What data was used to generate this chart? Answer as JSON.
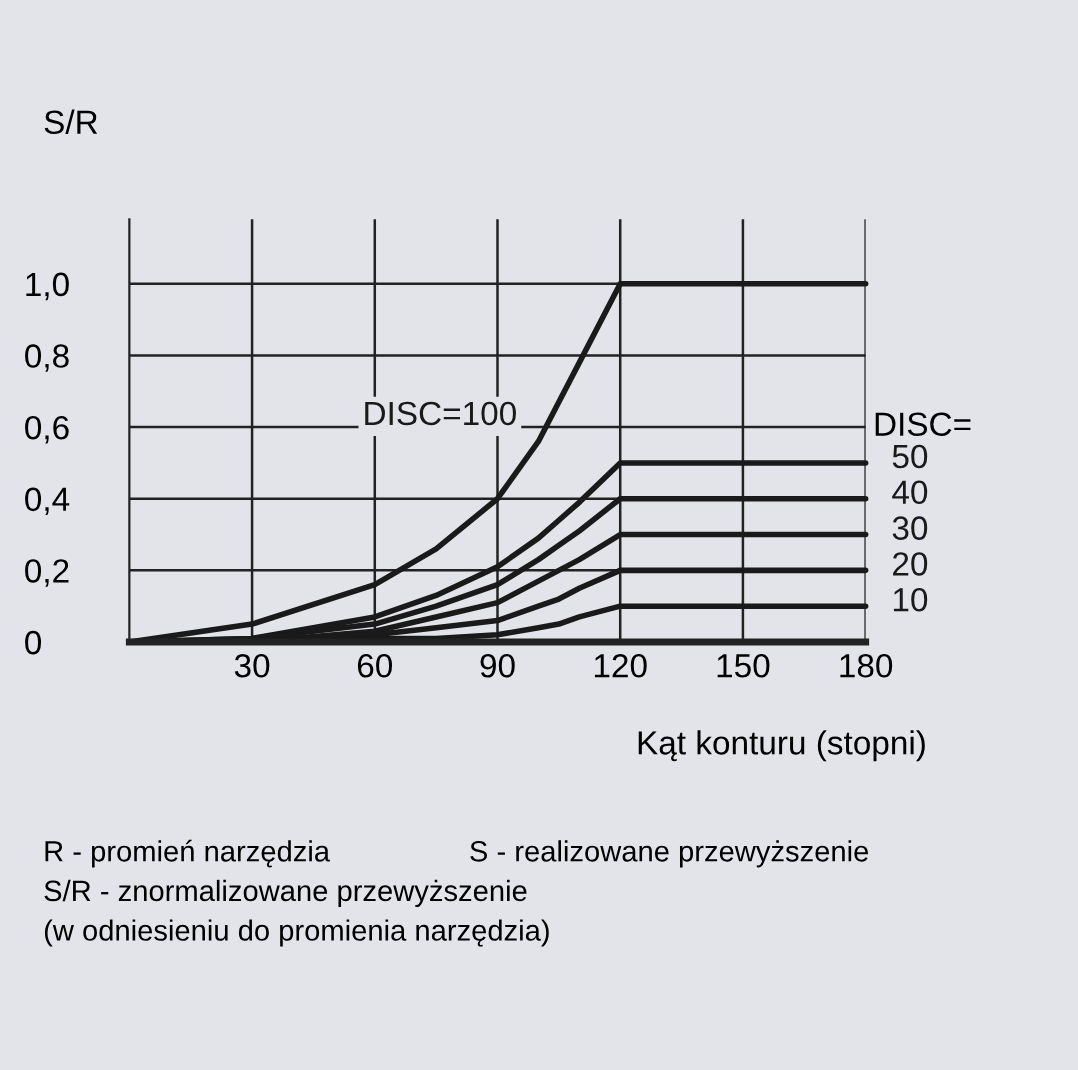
{
  "chart_data": {
    "type": "line",
    "ylabel": "S/R",
    "xlabel": "Kąt konturu (stopni)",
    "legend_title": "DISC=",
    "x": [
      0,
      30,
      60,
      75,
      90,
      100,
      105,
      110,
      120,
      180
    ],
    "series": [
      {
        "name": "DISC=100",
        "color": "#1a1a1a",
        "values": [
          0,
          0.05,
          0.16,
          0.26,
          0.4,
          0.56,
          0.67,
          0.78,
          1.0,
          1.0
        ]
      },
      {
        "name": "50",
        "color": "#1a1a1a",
        "values": [
          0,
          0.01,
          0.07,
          0.13,
          0.21,
          0.29,
          0.34,
          0.39,
          0.5,
          0.5
        ]
      },
      {
        "name": "40",
        "color": "#1a1a1a",
        "values": [
          0,
          0.01,
          0.05,
          0.1,
          0.16,
          0.23,
          0.27,
          0.31,
          0.4,
          0.4
        ]
      },
      {
        "name": "30",
        "color": "#1a1a1a",
        "values": [
          0,
          0,
          0.03,
          0.07,
          0.11,
          0.17,
          0.2,
          0.23,
          0.3,
          0.3
        ]
      },
      {
        "name": "20",
        "color": "#1a1a1a",
        "values": [
          0,
          0,
          0.02,
          0.04,
          0.06,
          0.1,
          0.12,
          0.15,
          0.2,
          0.2
        ]
      },
      {
        "name": "10",
        "color": "#1a1a1a",
        "values": [
          0,
          0,
          0.01,
          0.01,
          0.02,
          0.04,
          0.05,
          0.07,
          0.1,
          0.1
        ]
      }
    ],
    "xlim": [
      0,
      180
    ],
    "xticks": [
      30,
      60,
      90,
      120,
      150,
      180
    ],
    "ylim": [
      0,
      1.18
    ],
    "yticks": [
      0,
      {
        "value": 0.2,
        "label": "0,2"
      },
      {
        "value": 0.4,
        "label": "0,4"
      },
      {
        "value": 0.6,
        "label": "0,6"
      },
      {
        "value": 0.8,
        "label": "0,8"
      },
      {
        "value": 1.0,
        "label": "1,0"
      }
    ],
    "grid": true,
    "legend": "right",
    "marker": "none",
    "line_style": "solid",
    "annotations": [
      "R - promień narzędzia",
      "S - realizowane przewyższenie",
      "S/R - znormalizowane przewyższenie",
      "(w odniesieniu do promienia narzędzia)"
    ]
  }
}
